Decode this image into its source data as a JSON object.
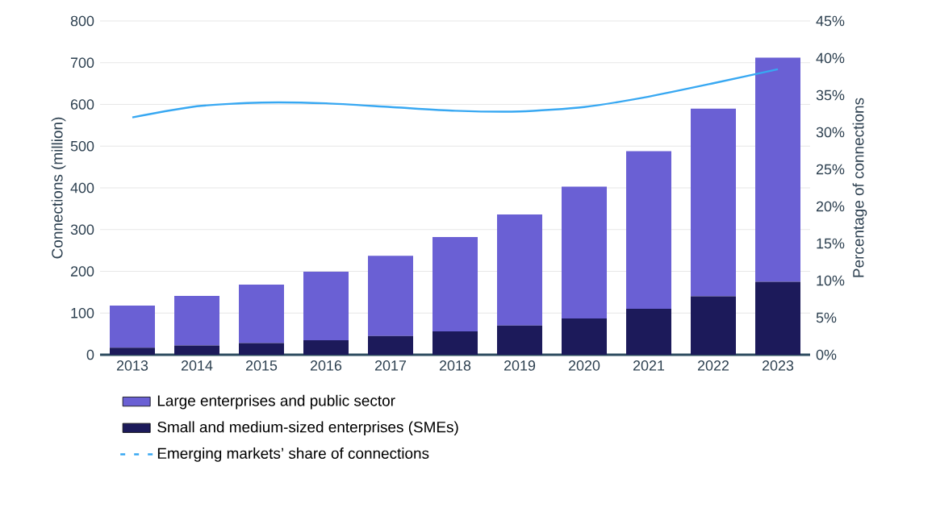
{
  "chart_data": {
    "type": "bar",
    "stacked": true,
    "categories": [
      "2013",
      "2014",
      "2015",
      "2016",
      "2017",
      "2018",
      "2019",
      "2020",
      "2021",
      "2022",
      "2023"
    ],
    "series": [
      {
        "name": "Small and medium-sized enterprises (SMEs)",
        "color": "#1c1a5a",
        "values": [
          17,
          22,
          28,
          35,
          45,
          56,
          70,
          87,
          110,
          140,
          175
        ]
      },
      {
        "name": "Large enterprises and public sector",
        "color": "#6a60d4",
        "values": [
          101,
          119,
          140,
          164,
          192,
          226,
          266,
          316,
          378,
          450,
          537
        ]
      },
      {
        "name": "Emerging markets’ share of connections",
        "type": "line",
        "axis": "y2",
        "color": "#38a8f2",
        "values": [
          32,
          33.5,
          34,
          33.9,
          33.4,
          32.9,
          32.8,
          33.4,
          34.8,
          36.6,
          38.5
        ]
      }
    ],
    "ylabel": "Connections (million)",
    "y2label": "Percentage of connections",
    "ylim": [
      0,
      800
    ],
    "yticks": [
      0,
      100,
      200,
      300,
      400,
      500,
      600,
      700,
      800
    ],
    "y2lim": [
      0,
      45
    ],
    "y2ticks": [
      {
        "value": 0,
        "label": "0%"
      },
      {
        "value": 5,
        "label": "5%"
      },
      {
        "value": 10,
        "label": "10%"
      },
      {
        "value": 15,
        "label": "15%"
      },
      {
        "value": 20,
        "label": "20%"
      },
      {
        "value": 25,
        "label": "25%"
      },
      {
        "value": 30,
        "label": "30%"
      },
      {
        "value": 35,
        "label": "35%"
      },
      {
        "value": 40,
        "label": "40%"
      },
      {
        "value": 45,
        "label": "45%"
      }
    ],
    "grid": "y",
    "legend": "bottom"
  }
}
